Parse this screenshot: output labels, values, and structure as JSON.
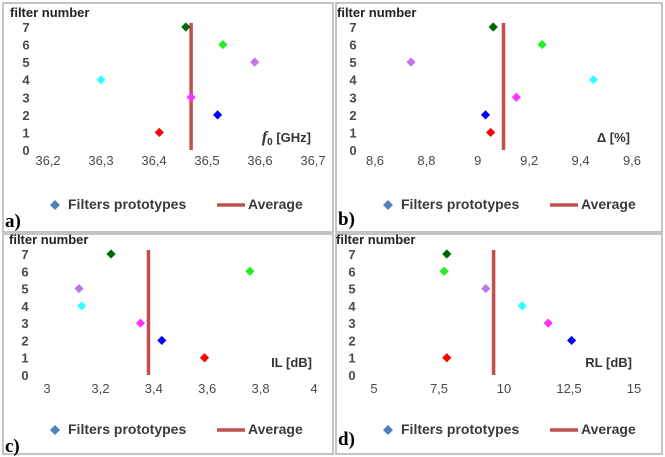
{
  "chart_data": [
    {
      "panel": "a)",
      "type": "scatter",
      "ylabel": "filter number",
      "xlabel_var": "f",
      "xlabel_sub": "0",
      "xlabel_unit": " [GHz]",
      "xlim": [
        36.2,
        36.7
      ],
      "xticks": [
        "36,2",
        "36,3",
        "36,4",
        "36,5",
        "36,6",
        "36,7"
      ],
      "ylim": [
        0,
        7
      ],
      "yticks": [
        "0",
        "1",
        "2",
        "3",
        "4",
        "5",
        "6",
        "7"
      ],
      "points": [
        {
          "filter": 1,
          "x": 36.41,
          "color": "#ff0000"
        },
        {
          "filter": 2,
          "x": 36.52,
          "color": "#0000ff"
        },
        {
          "filter": 3,
          "x": 36.47,
          "color": "#ff33ff"
        },
        {
          "filter": 4,
          "x": 36.3,
          "color": "#33ffff"
        },
        {
          "filter": 5,
          "x": 36.59,
          "color": "#bb77ee"
        },
        {
          "filter": 6,
          "x": 36.53,
          "color": "#22ee22"
        },
        {
          "filter": 7,
          "x": 36.46,
          "color": "#006600"
        }
      ],
      "average": 36.47,
      "legend": [
        "Filters prototypes",
        "Average"
      ]
    },
    {
      "panel": "b)",
      "type": "scatter",
      "ylabel": "filter number",
      "xlabel_var": "Δ",
      "xlabel_sub": "",
      "xlabel_unit": " [%]",
      "xlim": [
        8.6,
        9.6
      ],
      "xticks": [
        "8,6",
        "8,8",
        "9",
        "9,2",
        "9,4",
        "9,6"
      ],
      "ylim": [
        0,
        7
      ],
      "yticks": [
        "0",
        "1",
        "2",
        "3",
        "4",
        "5",
        "6",
        "7"
      ],
      "points": [
        {
          "filter": 1,
          "x": 9.05,
          "color": "#ff0000"
        },
        {
          "filter": 2,
          "x": 9.03,
          "color": "#0000ff"
        },
        {
          "filter": 3,
          "x": 9.15,
          "color": "#ff33ff"
        },
        {
          "filter": 4,
          "x": 9.45,
          "color": "#33ffff"
        },
        {
          "filter": 5,
          "x": 8.74,
          "color": "#bb77ee"
        },
        {
          "filter": 6,
          "x": 9.25,
          "color": "#22ee22"
        },
        {
          "filter": 7,
          "x": 9.06,
          "color": "#006600"
        }
      ],
      "average": 9.1,
      "legend": [
        "Filters prototypes",
        "Average"
      ]
    },
    {
      "panel": "c)",
      "type": "scatter",
      "ylabel": "filter number",
      "xlabel_var": "IL",
      "xlabel_sub": "",
      "xlabel_unit": " [dB]",
      "xlim": [
        3,
        4
      ],
      "xticks": [
        "3",
        "3,2",
        "3,4",
        "3,6",
        "3,8",
        "4"
      ],
      "ylim": [
        0,
        7
      ],
      "yticks": [
        "0",
        "1",
        "2",
        "3",
        "4",
        "5",
        "6",
        "7"
      ],
      "points": [
        {
          "filter": 1,
          "x": 3.59,
          "color": "#ff0000"
        },
        {
          "filter": 2,
          "x": 3.43,
          "color": "#0000ff"
        },
        {
          "filter": 3,
          "x": 3.35,
          "color": "#ff33ff"
        },
        {
          "filter": 4,
          "x": 3.13,
          "color": "#33ffff"
        },
        {
          "filter": 5,
          "x": 3.12,
          "color": "#bb77ee"
        },
        {
          "filter": 6,
          "x": 3.76,
          "color": "#22ee22"
        },
        {
          "filter": 7,
          "x": 3.24,
          "color": "#006600"
        }
      ],
      "average": 3.38,
      "legend": [
        "Filters prototypes",
        "Average"
      ]
    },
    {
      "panel": "d)",
      "type": "scatter",
      "ylabel": "filter number",
      "xlabel_var": "RL",
      "xlabel_sub": "",
      "xlabel_unit": " [dB]",
      "xlim": [
        5,
        15
      ],
      "xticks": [
        "5",
        "7,5",
        "10",
        "12,5",
        "15"
      ],
      "ylim": [
        0,
        7
      ],
      "yticks": [
        "0",
        "1",
        "2",
        "3",
        "4",
        "5",
        "6",
        "7"
      ],
      "points": [
        {
          "filter": 1,
          "x": 7.8,
          "color": "#ff0000"
        },
        {
          "filter": 2,
          "x": 12.6,
          "color": "#0000ff"
        },
        {
          "filter": 3,
          "x": 11.7,
          "color": "#ff33ff"
        },
        {
          "filter": 4,
          "x": 10.7,
          "color": "#33ffff"
        },
        {
          "filter": 5,
          "x": 9.3,
          "color": "#bb77ee"
        },
        {
          "filter": 6,
          "x": 7.7,
          "color": "#22ee22"
        },
        {
          "filter": 7,
          "x": 7.8,
          "color": "#006600"
        }
      ],
      "average": 9.6,
      "legend": [
        "Filters prototypes",
        "Average"
      ]
    }
  ],
  "colors": {
    "average_line": "#c0504d",
    "legend_marker": "#4f81bd",
    "panel_border": "#b0b0b0"
  }
}
